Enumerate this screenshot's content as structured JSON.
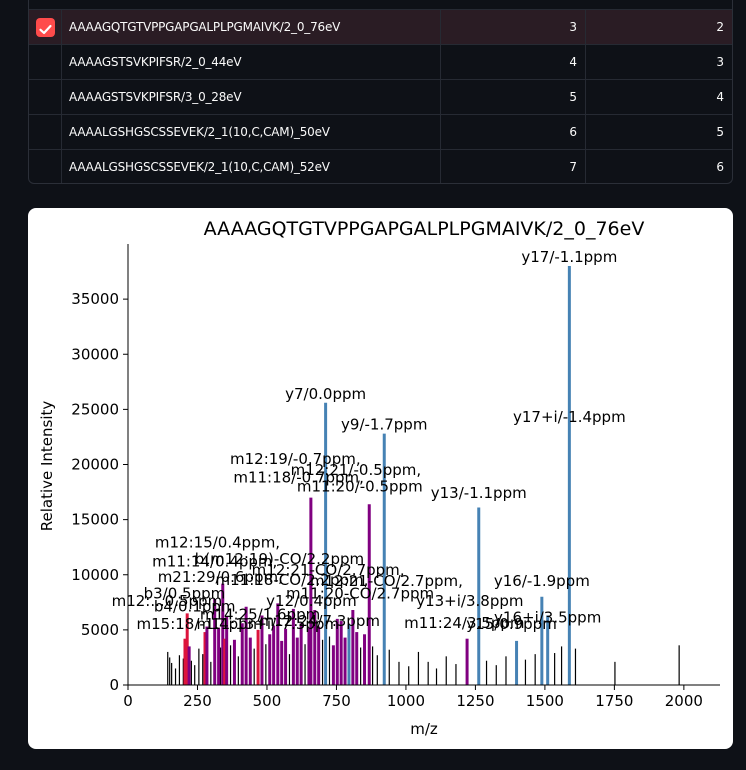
{
  "table": {
    "rows": [
      {
        "selected": true,
        "name": "AAAAGQTGTVPPGAPGALPLPGMAIVK/2_0_76eV",
        "col2": "3",
        "col3": "2"
      },
      {
        "selected": false,
        "name": "AAAAGSTSVKPIFSR/2_0_44eV",
        "col2": "4",
        "col3": "3"
      },
      {
        "selected": false,
        "name": "AAAAGSTSVKPIFSR/3_0_28eV",
        "col2": "5",
        "col3": "4"
      },
      {
        "selected": false,
        "name": "AAAALGSHGSCSSEVEK/2_1(10,C,CAM)_50eV",
        "col2": "6",
        "col3": "5"
      },
      {
        "selected": false,
        "name": "AAAALGSHGSCSSEVEK/2_1(10,C,CAM)_52eV",
        "col2": "7",
        "col3": "6"
      }
    ]
  },
  "colors": {
    "y_ion": "#4682b4",
    "b_ion": "#dc143c",
    "internal": "#800080",
    "unassigned": "#000000",
    "checkbox": "#ff4b4b"
  },
  "chart_data": {
    "type": "bar",
    "title": "AAAAGQTGTVPPGAPGALPLPGMAIVK/2_0_76eV",
    "xlabel": "m/z",
    "ylabel": "Relative Intensity",
    "xlim": [
      0,
      2130
    ],
    "ylim": [
      0,
      40000
    ],
    "xticks": [
      0,
      250,
      500,
      750,
      1000,
      1250,
      1500,
      1750,
      2000
    ],
    "yticks": [
      0,
      5000,
      10000,
      15000,
      20000,
      25000,
      30000,
      35000
    ],
    "grid": false,
    "peaks": [
      {
        "mz": 143,
        "intensity": 3000,
        "type": "unassigned"
      },
      {
        "mz": 150,
        "intensity": 2500,
        "type": "unassigned"
      },
      {
        "mz": 157,
        "intensity": 2000,
        "type": "unassigned"
      },
      {
        "mz": 171,
        "intensity": 1500,
        "type": "unassigned"
      },
      {
        "mz": 185,
        "intensity": 2700,
        "type": "unassigned"
      },
      {
        "mz": 199,
        "intensity": 2400,
        "type": "unassigned"
      },
      {
        "mz": 205,
        "intensity": 4200,
        "type": "b"
      },
      {
        "mz": 213,
        "intensity": 6500,
        "type": "b"
      },
      {
        "mz": 220,
        "intensity": 3500,
        "type": "internal"
      },
      {
        "mz": 228,
        "intensity": 2200,
        "type": "unassigned"
      },
      {
        "mz": 240,
        "intensity": 1800,
        "type": "unassigned"
      },
      {
        "mz": 255,
        "intensity": 3300,
        "type": "unassigned"
      },
      {
        "mz": 269,
        "intensity": 2800,
        "type": "unassigned"
      },
      {
        "mz": 277,
        "intensity": 4800,
        "type": "b"
      },
      {
        "mz": 284,
        "intensity": 5300,
        "type": "internal"
      },
      {
        "mz": 298,
        "intensity": 2100,
        "type": "unassigned"
      },
      {
        "mz": 312,
        "intensity": 7800,
        "type": "internal"
      },
      {
        "mz": 326,
        "intensity": 5200,
        "type": "internal"
      },
      {
        "mz": 333,
        "intensity": 3400,
        "type": "unassigned"
      },
      {
        "mz": 341,
        "intensity": 9200,
        "type": "internal"
      },
      {
        "mz": 348,
        "intensity": 4200,
        "type": "b"
      },
      {
        "mz": 355,
        "intensity": 6200,
        "type": "internal"
      },
      {
        "mz": 369,
        "intensity": 3600,
        "type": "unassigned"
      },
      {
        "mz": 383,
        "intensity": 4100,
        "type": "internal"
      },
      {
        "mz": 397,
        "intensity": 2600,
        "type": "unassigned"
      },
      {
        "mz": 411,
        "intensity": 5600,
        "type": "internal"
      },
      {
        "mz": 425,
        "intensity": 7100,
        "type": "internal"
      },
      {
        "mz": 440,
        "intensity": 4300,
        "type": "internal"
      },
      {
        "mz": 454,
        "intensity": 3300,
        "type": "unassigned"
      },
      {
        "mz": 468,
        "intensity": 5000,
        "type": "b"
      },
      {
        "mz": 482,
        "intensity": 6300,
        "type": "internal"
      },
      {
        "mz": 496,
        "intensity": 3700,
        "type": "unassigned"
      },
      {
        "mz": 510,
        "intensity": 4600,
        "type": "internal"
      },
      {
        "mz": 524,
        "intensity": 5400,
        "type": "internal"
      },
      {
        "mz": 539,
        "intensity": 7400,
        "type": "internal"
      },
      {
        "mz": 553,
        "intensity": 4000,
        "type": "internal"
      },
      {
        "mz": 567,
        "intensity": 5100,
        "type": "internal"
      },
      {
        "mz": 581,
        "intensity": 2800,
        "type": "unassigned"
      },
      {
        "mz": 595,
        "intensity": 6900,
        "type": "internal"
      },
      {
        "mz": 609,
        "intensity": 4300,
        "type": "internal"
      },
      {
        "mz": 623,
        "intensity": 5600,
        "type": "internal"
      },
      {
        "mz": 637,
        "intensity": 3700,
        "type": "unassigned"
      },
      {
        "mz": 651,
        "intensity": 5200,
        "type": "internal"
      },
      {
        "mz": 658,
        "intensity": 17000,
        "type": "internal"
      },
      {
        "mz": 672,
        "intensity": 6800,
        "type": "internal"
      },
      {
        "mz": 686,
        "intensity": 5300,
        "type": "internal"
      },
      {
        "mz": 700,
        "intensity": 4100,
        "type": "unassigned"
      },
      {
        "mz": 711,
        "intensity": 25600,
        "type": "y"
      },
      {
        "mz": 725,
        "intensity": 4400,
        "type": "unassigned"
      },
      {
        "mz": 739,
        "intensity": 3600,
        "type": "internal"
      },
      {
        "mz": 753,
        "intensity": 6000,
        "type": "internal"
      },
      {
        "mz": 767,
        "intensity": 5800,
        "type": "internal"
      },
      {
        "mz": 781,
        "intensity": 4300,
        "type": "internal"
      },
      {
        "mz": 795,
        "intensity": 5500,
        "type": "y"
      },
      {
        "mz": 809,
        "intensity": 6800,
        "type": "internal"
      },
      {
        "mz": 823,
        "intensity": 4800,
        "type": "internal"
      },
      {
        "mz": 837,
        "intensity": 3400,
        "type": "unassigned"
      },
      {
        "mz": 851,
        "intensity": 4600,
        "type": "internal"
      },
      {
        "mz": 868,
        "intensity": 16400,
        "type": "internal"
      },
      {
        "mz": 880,
        "intensity": 3500,
        "type": "unassigned"
      },
      {
        "mz": 897,
        "intensity": 2700,
        "type": "unassigned"
      },
      {
        "mz": 922,
        "intensity": 22800,
        "type": "y"
      },
      {
        "mz": 940,
        "intensity": 3200,
        "type": "unassigned"
      },
      {
        "mz": 975,
        "intensity": 2100,
        "type": "unassigned"
      },
      {
        "mz": 1010,
        "intensity": 1700,
        "type": "unassigned"
      },
      {
        "mz": 1045,
        "intensity": 3000,
        "type": "unassigned"
      },
      {
        "mz": 1080,
        "intensity": 2100,
        "type": "unassigned"
      },
      {
        "mz": 1110,
        "intensity": 1500,
        "type": "unassigned"
      },
      {
        "mz": 1145,
        "intensity": 2600,
        "type": "unassigned"
      },
      {
        "mz": 1180,
        "intensity": 1900,
        "type": "unassigned"
      },
      {
        "mz": 1220,
        "intensity": 4200,
        "type": "internal"
      },
      {
        "mz": 1262,
        "intensity": 16100,
        "type": "y"
      },
      {
        "mz": 1290,
        "intensity": 2200,
        "type": "unassigned"
      },
      {
        "mz": 1325,
        "intensity": 1800,
        "type": "unassigned"
      },
      {
        "mz": 1360,
        "intensity": 2600,
        "type": "unassigned"
      },
      {
        "mz": 1398,
        "intensity": 4000,
        "type": "y"
      },
      {
        "mz": 1430,
        "intensity": 2300,
        "type": "unassigned"
      },
      {
        "mz": 1465,
        "intensity": 2800,
        "type": "unassigned"
      },
      {
        "mz": 1489,
        "intensity": 8000,
        "type": "y"
      },
      {
        "mz": 1510,
        "intensity": 6300,
        "type": "y"
      },
      {
        "mz": 1535,
        "intensity": 2900,
        "type": "unassigned"
      },
      {
        "mz": 1560,
        "intensity": 3500,
        "type": "unassigned"
      },
      {
        "mz": 1588,
        "intensity": 38000,
        "type": "y"
      },
      {
        "mz": 1610,
        "intensity": 3300,
        "type": "unassigned"
      },
      {
        "mz": 1752,
        "intensity": 2100,
        "type": "unassigned"
      },
      {
        "mz": 1983,
        "intensity": 3600,
        "type": "unassigned"
      }
    ],
    "annotations": [
      {
        "text": "y17/-1.1ppm",
        "mz": 1588,
        "intensity": 38000,
        "anchor": "middle"
      },
      {
        "text": "y7/0.0ppm",
        "mz": 711,
        "intensity": 25600,
        "anchor": "middle"
      },
      {
        "text": "y9/-1.7ppm",
        "mz": 922,
        "intensity": 22800,
        "anchor": "middle"
      },
      {
        "text": "y17+i/-1.4ppm",
        "mz": 1588,
        "intensity": 23500,
        "anchor": "middle"
      },
      {
        "text": "m12:19/-0.7ppm,",
        "mz": 602,
        "intensity": 19700,
        "anchor": "middle"
      },
      {
        "text": "m12:21/-0.5ppm,",
        "mz": 820,
        "intensity": 18700,
        "anchor": "middle"
      },
      {
        "text": "m11:18/-0.7ppm,",
        "mz": 614,
        "intensity": 18000,
        "anchor": "middle"
      },
      {
        "text": "m11:20/-0.5ppm",
        "mz": 834,
        "intensity": 17200,
        "anchor": "middle"
      },
      {
        "text": "y13/-1.1ppm",
        "mz": 1262,
        "intensity": 16600,
        "anchor": "middle"
      },
      {
        "text": "m12:15/0.4ppm,",
        "mz": 322,
        "intensity": 12100,
        "anchor": "middle"
      },
      {
        "text": "m11:14/0.4ppm,",
        "mz": 312,
        "intensity": 10400,
        "anchor": "middle"
      },
      {
        "text": "b(m12:19)-CO/2.2ppm",
        "mz": 545,
        "intensity": 10600,
        "anchor": "middle"
      },
      {
        "text": "m12:21-CO/2.7ppm,",
        "mz": 720,
        "intensity": 9600,
        "anchor": "middle"
      },
      {
        "text": "m21:29/0.6ppm,",
        "mz": 332,
        "intensity": 9000,
        "anchor": "middle"
      },
      {
        "text": "m11:18-CO/2.2ppm,",
        "mz": 590,
        "intensity": 8700,
        "anchor": "middle"
      },
      {
        "text": "y16/-1.9ppm",
        "mz": 1489,
        "intensity": 8600,
        "anchor": "middle"
      },
      {
        "text": "m12:21-CO/2.7ppm,",
        "mz": 930,
        "intensity": 8600,
        "anchor": "middle"
      },
      {
        "text": "b3/0.5ppm",
        "mz": 203,
        "intensity": 7500,
        "anchor": "middle"
      },
      {
        "text": "m11:20-CO/2.7ppm",
        "mz": 835,
        "intensity": 7500,
        "anchor": "middle"
      },
      {
        "text": "m12:...0.5ppm",
        "mz": 140,
        "intensity": 6800,
        "anchor": "middle"
      },
      {
        "text": "b4/0.1ppm",
        "mz": 240,
        "intensity": 6300,
        "anchor": "middle"
      },
      {
        "text": "y12/0.4ppm",
        "mz": 660,
        "intensity": 6800,
        "anchor": "middle"
      },
      {
        "text": "y13+i/3.8ppm",
        "mz": 1230,
        "intensity": 6800,
        "anchor": "middle"
      },
      {
        "text": "m14:25/1.6ppm",
        "mz": 475,
        "intensity": 5600,
        "anchor": "middle"
      },
      {
        "text": "y16+i/3.5ppm",
        "mz": 1510,
        "intensity": 5300,
        "anchor": "middle"
      },
      {
        "text": "m11:24/3.5ppm",
        "mz": 1210,
        "intensity": 4800,
        "anchor": "middle"
      },
      {
        "text": "m15:18/-1.4ppm",
        "mz": 257,
        "intensity": 4700,
        "anchor": "middle"
      },
      {
        "text": "m11:13+i/-7.5ppm",
        "mz": 503,
        "intensity": 4700,
        "anchor": "middle"
      },
      {
        "text": "m12:24/7.3ppm",
        "mz": 690,
        "intensity": 5000,
        "anchor": "middle"
      },
      {
        "text": "y15/0.9ppm",
        "mz": 1380,
        "intensity": 4700,
        "anchor": "middle"
      }
    ]
  }
}
